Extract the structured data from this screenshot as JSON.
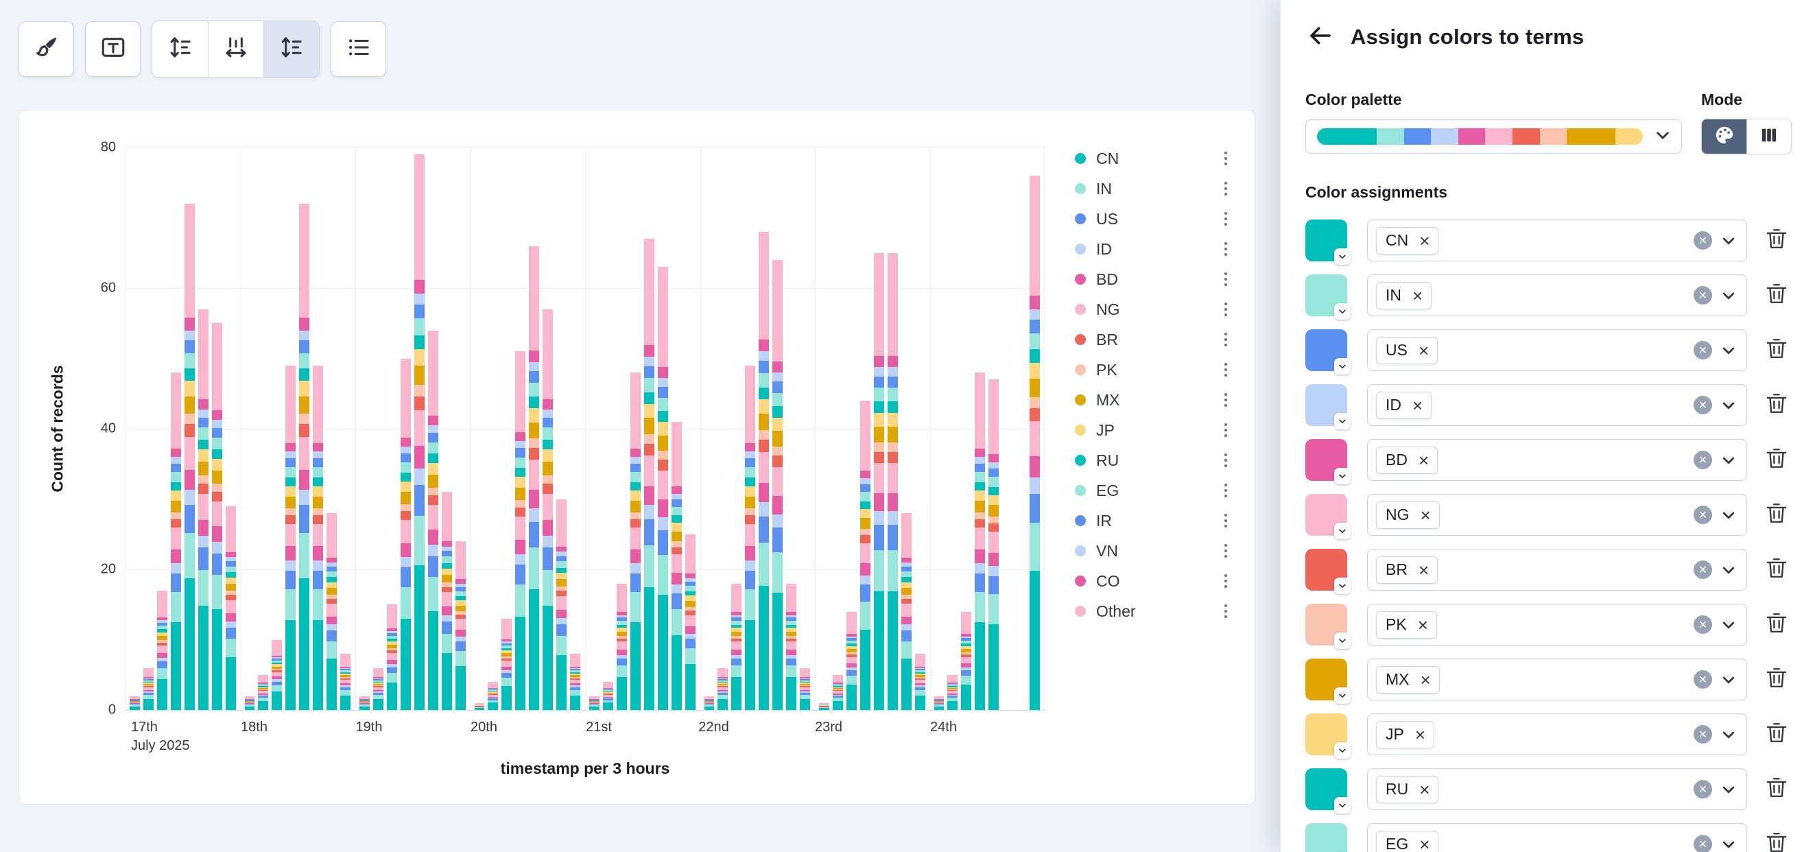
{
  "toolbar": {
    "buttons": [
      {
        "icon": "brush-icon",
        "selected": false
      },
      {
        "icon": "text-labels-icon",
        "selected": false
      },
      {
        "icon": "sort-vertical-icon",
        "selected": false
      },
      {
        "icon": "sort-horizontal-icon",
        "selected": false
      },
      {
        "icon": "sort-vertical-icon",
        "selected": true
      },
      {
        "icon": "legend-list-icon",
        "selected": false
      }
    ]
  },
  "chart_data": {
    "type": "bar",
    "stacked": true,
    "title": "",
    "xlabel": "timestamp per 3 hours",
    "ylabel": "Count of records",
    "ylim": [
      0,
      80
    ],
    "y_ticks": [
      0,
      20,
      40,
      60,
      80
    ],
    "grid": true,
    "legend_position": "right",
    "day_labels": [
      "17th",
      "18th",
      "19th",
      "20th",
      "21st",
      "22nd",
      "23rd",
      "24th"
    ],
    "first_day_sublabel": "July 2025",
    "bars_per_day": 8,
    "series_names": [
      "CN",
      "IN",
      "US",
      "ID",
      "BD",
      "NG",
      "BR",
      "PK",
      "MX",
      "JP",
      "RU",
      "EG",
      "IR",
      "VN",
      "CO",
      "Other"
    ],
    "palette": [
      "#00BEB8",
      "#97E6DB",
      "#5B8FF0",
      "#BCD3F9",
      "#E75BA2",
      "#F9B6CD",
      "#EE6456",
      "#FBC4AE",
      "#E0A500",
      "#FBD77E"
    ],
    "day_bar_totals": [
      [
        2,
        6,
        17,
        48,
        72,
        57,
        55,
        29
      ],
      [
        2,
        5,
        10,
        49,
        72,
        49,
        28,
        8
      ],
      [
        2,
        6,
        15,
        50,
        79,
        54,
        31,
        24
      ],
      [
        1,
        4,
        13,
        51,
        66,
        57,
        30,
        8
      ],
      [
        2,
        4,
        18,
        48,
        67,
        63,
        41,
        25
      ],
      [
        2,
        6,
        18,
        49,
        68,
        64,
        18,
        6
      ],
      [
        1,
        5,
        14,
        44,
        65,
        65,
        28,
        8
      ],
      [
        2,
        5,
        14,
        48,
        47,
        0,
        0,
        76
      ]
    ],
    "series_fractions": {
      "CN": 0.26,
      "IN": 0.09,
      "US": 0.055,
      "ID": 0.03,
      "BD": 0.04,
      "NG": 0.065,
      "BR": 0.025,
      "PK": 0.02,
      "MX": 0.035,
      "JP": 0.03,
      "RU": 0.025,
      "EG": 0.03,
      "IR": 0.025,
      "VN": 0.02,
      "CO": 0.025,
      "Other": 0.225
    }
  },
  "panel": {
    "title": "Assign colors to terms",
    "palette_label": "Color palette",
    "mode_label": "Mode",
    "assignments_label": "Color assignments",
    "mode_buttons": [
      {
        "icon": "palette-icon",
        "selected": true
      },
      {
        "icon": "gradient-columns-icon",
        "selected": false
      }
    ],
    "assignments": [
      {
        "term": "CN",
        "color": "#00BEB8"
      },
      {
        "term": "IN",
        "color": "#97E6DB"
      },
      {
        "term": "US",
        "color": "#5B8FF0"
      },
      {
        "term": "ID",
        "color": "#BCD3F9"
      },
      {
        "term": "BD",
        "color": "#E75BA2"
      },
      {
        "term": "NG",
        "color": "#F9B6CD"
      },
      {
        "term": "BR",
        "color": "#EE6456"
      },
      {
        "term": "PK",
        "color": "#FBC4AE"
      },
      {
        "term": "MX",
        "color": "#E0A500"
      },
      {
        "term": "JP",
        "color": "#FBD77E"
      },
      {
        "term": "RU",
        "color": "#00BEB8"
      },
      {
        "term": "EG",
        "color": "#97E6DB"
      }
    ]
  }
}
